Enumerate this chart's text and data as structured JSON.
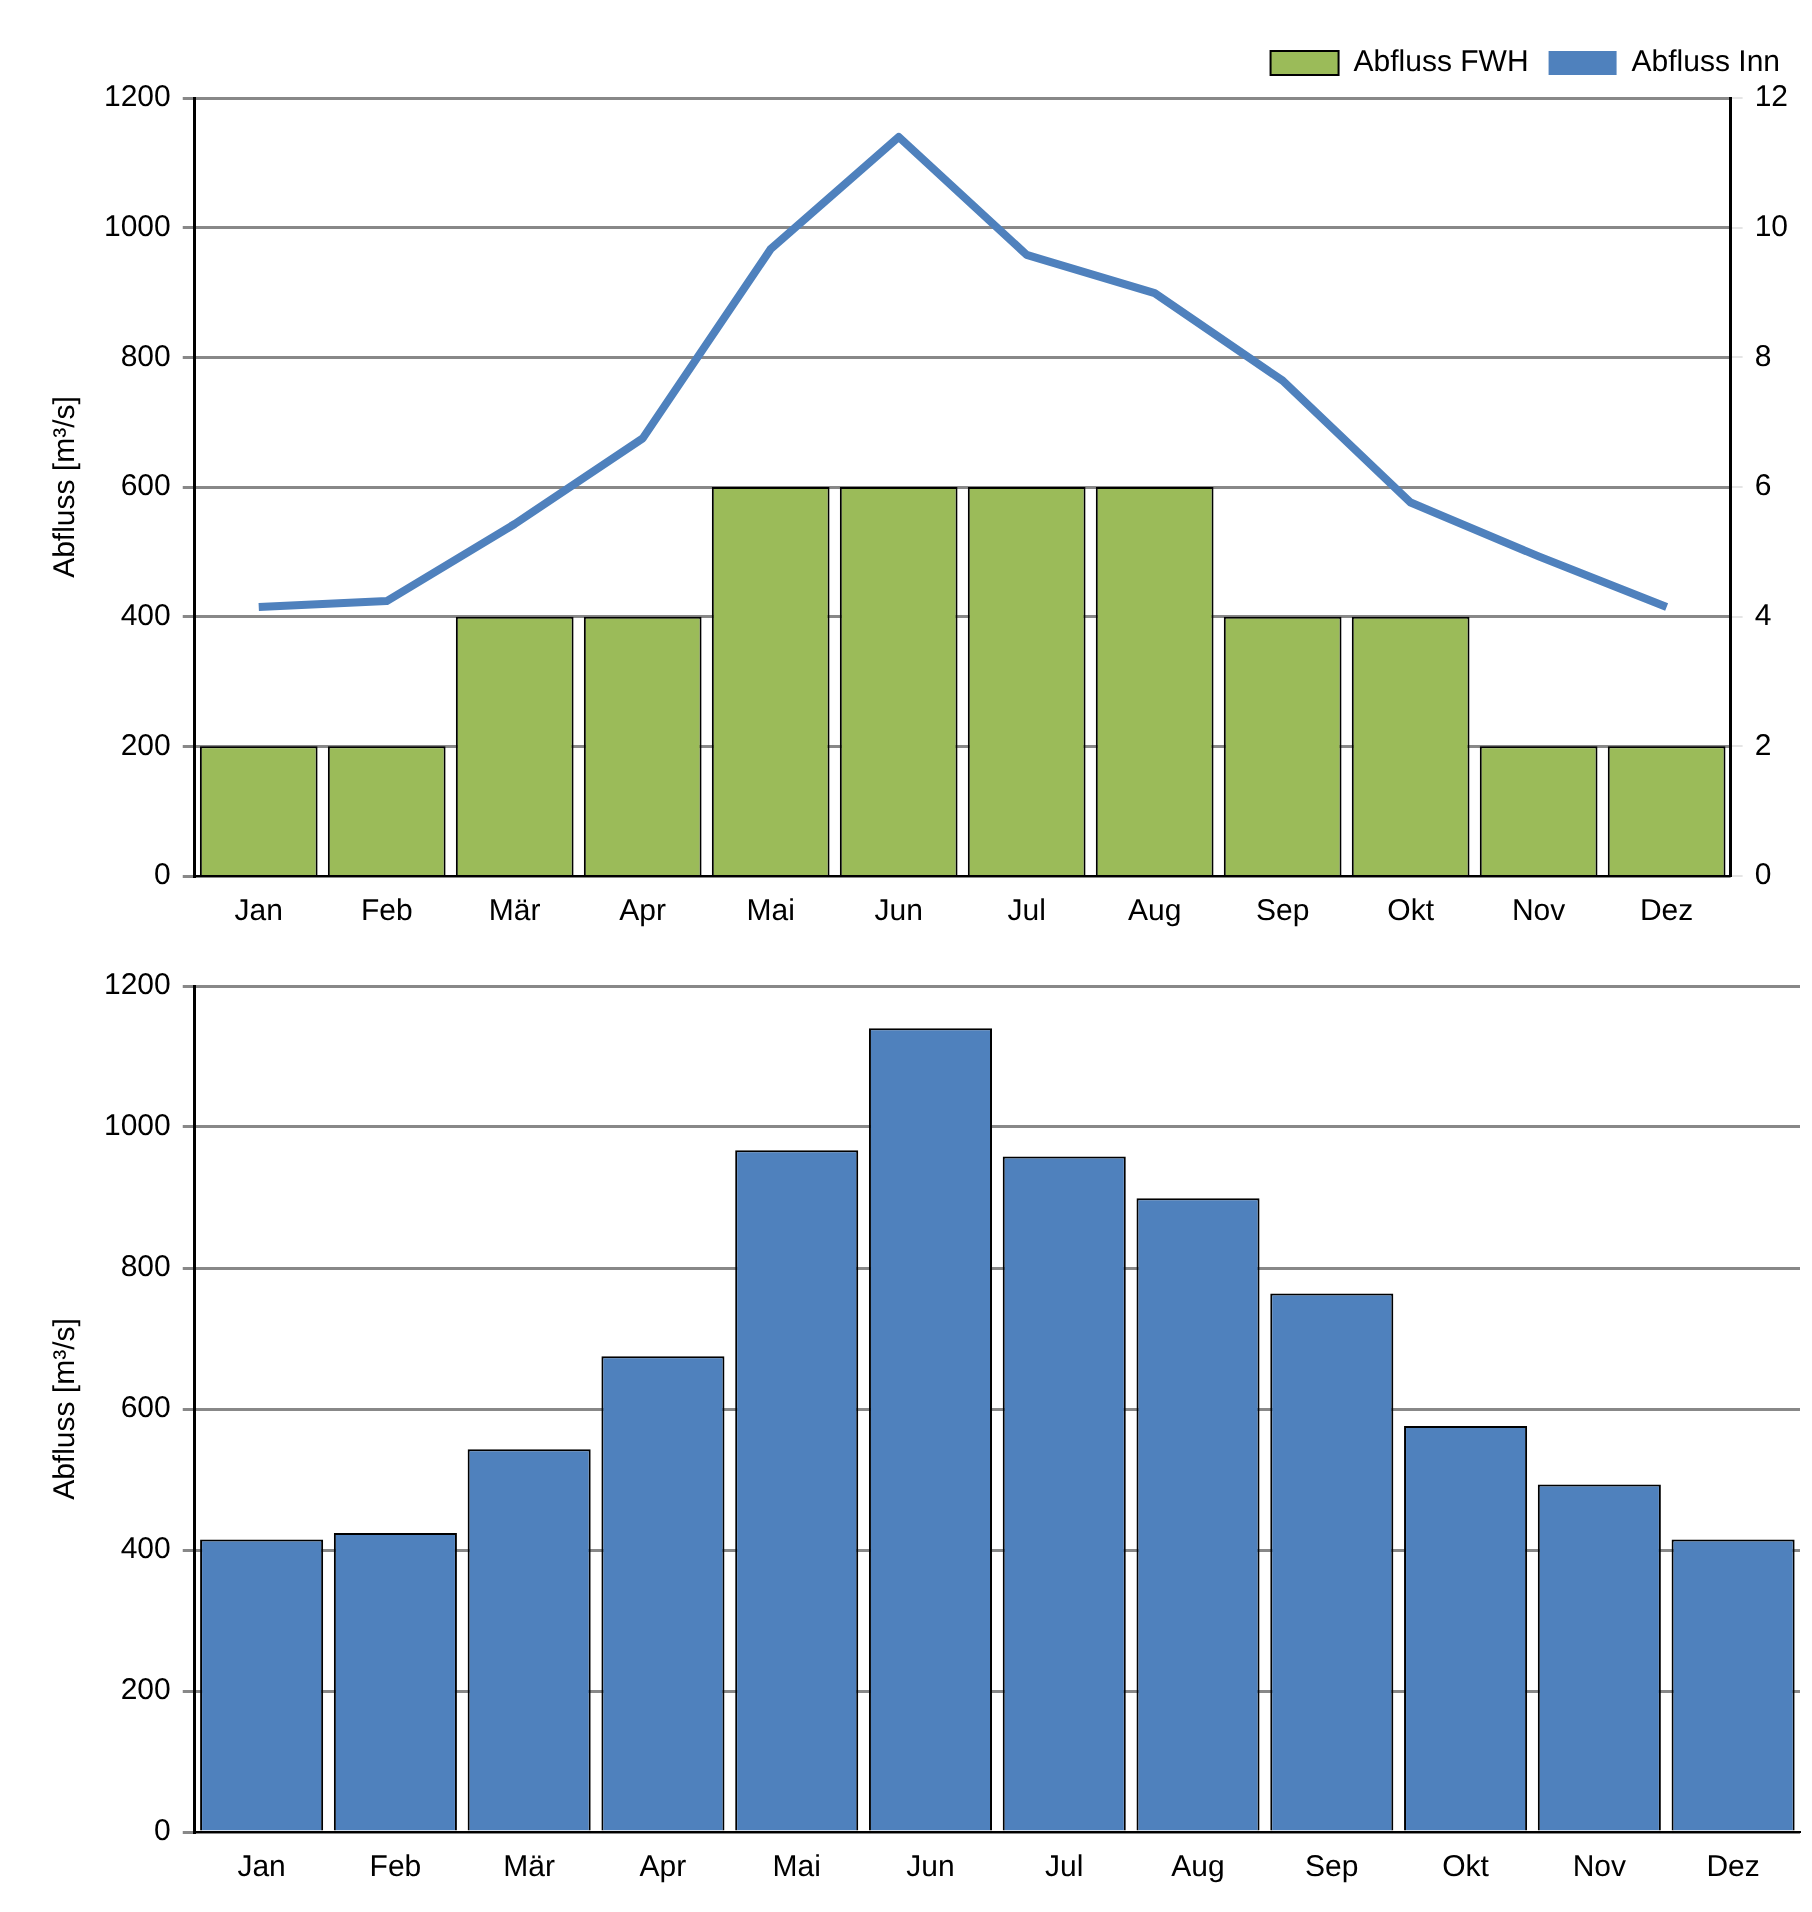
{
  "chart_data": [
    {
      "type": "bar",
      "categories": [
        "Jan",
        "Feb",
        "Mär",
        "Apr",
        "Mai",
        "Jun",
        "Jul",
        "Aug",
        "Sep",
        "Okt",
        "Nov",
        "Dez"
      ],
      "ylabel": "Abfluss [m³/s]",
      "ylim": [
        0,
        1200
      ],
      "yticks": [
        0,
        200,
        400,
        600,
        800,
        1000,
        1200
      ],
      "y2lim": [
        0,
        12
      ],
      "y2ticks": [
        0,
        2,
        4,
        6,
        8,
        10,
        12
      ],
      "grid": "y",
      "legend": "top right",
      "marker": "none",
      "series": [
        {
          "name": "Abfluss FWH",
          "axis": "y2",
          "color": "#9bbb59",
          "values": [
            2,
            2,
            4,
            4,
            6,
            6,
            6,
            6,
            4,
            4,
            2,
            2
          ]
        },
        {
          "name": "Abfluss Inn",
          "type": "line",
          "color": "#4f81bd",
          "values": [
            415,
            424,
            543,
            675,
            967,
            1140,
            958,
            899,
            764,
            576,
            493,
            415
          ]
        }
      ]
    },
    {
      "type": "bar",
      "categories": [
        "Jan",
        "Feb",
        "Mär",
        "Apr",
        "Mai",
        "Jun",
        "Jul",
        "Aug",
        "Sep",
        "Okt",
        "Nov",
        "Dez"
      ],
      "ylabel": "Abfluss [m³/s]",
      "ylim": [
        0,
        1200
      ],
      "yticks": [
        0,
        200,
        400,
        600,
        800,
        1000,
        1200
      ],
      "grid": "y",
      "color": "#4f81bd",
      "values": [
        415,
        424,
        543,
        675,
        967,
        1140,
        958,
        899,
        764,
        576,
        493,
        415
      ]
    }
  ]
}
